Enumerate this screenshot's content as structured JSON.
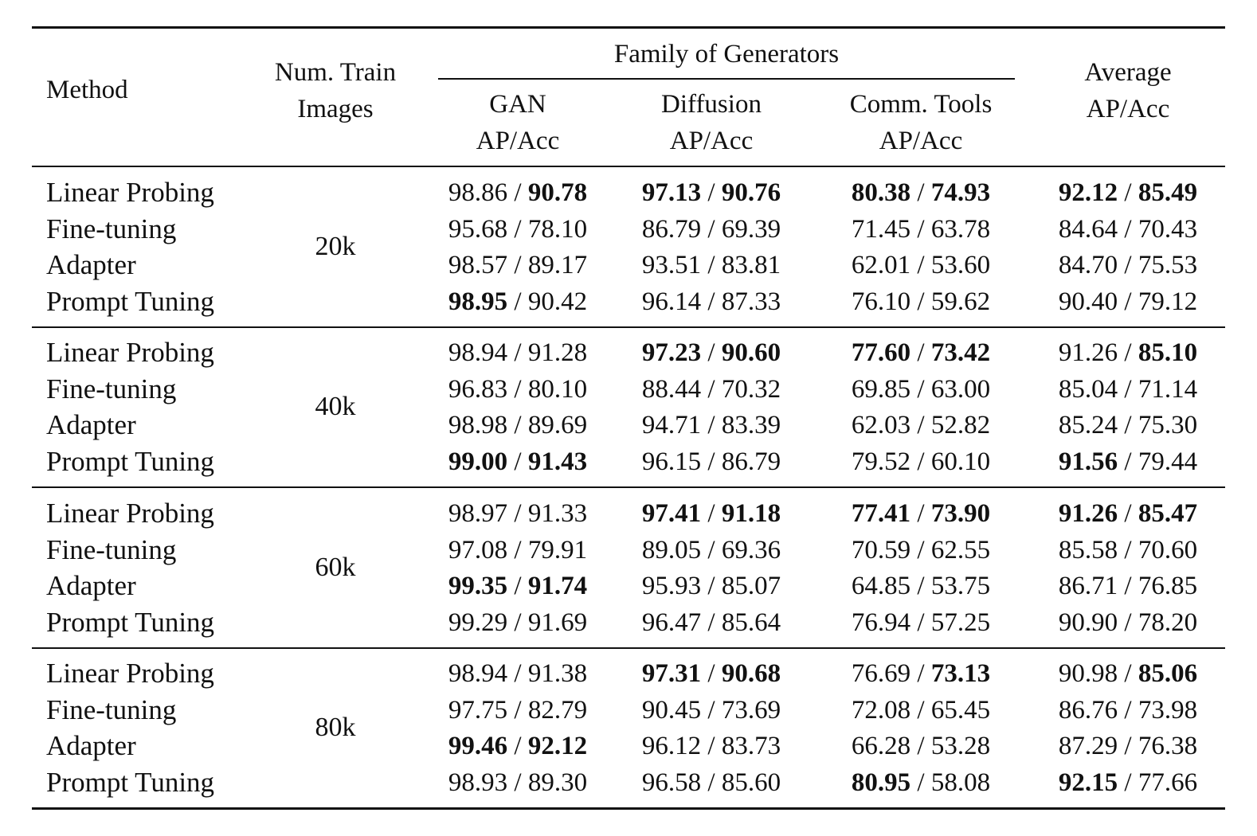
{
  "header": {
    "method": "Method",
    "num_train": [
      "Num. Train",
      "Images"
    ],
    "family": "Family of Generators",
    "columns": [
      [
        "GAN",
        "AP/Acc"
      ],
      [
        "Diffusion",
        "AP/Acc"
      ],
      [
        "Comm. Tools",
        "AP/Acc"
      ]
    ],
    "average": [
      "Average",
      "AP/Acc"
    ]
  },
  "separator": " / ",
  "groups": [
    {
      "size": "20k",
      "rows": [
        {
          "method": "Linear Probing",
          "cells": [
            {
              "ap": "98.86",
              "acc": "90.78",
              "ap_bold": false,
              "acc_bold": true
            },
            {
              "ap": "97.13",
              "acc": "90.76",
              "ap_bold": true,
              "acc_bold": true
            },
            {
              "ap": "80.38",
              "acc": "74.93",
              "ap_bold": true,
              "acc_bold": true
            },
            {
              "ap": "92.12",
              "acc": "85.49",
              "ap_bold": true,
              "acc_bold": true
            }
          ]
        },
        {
          "method": "Fine-tuning",
          "cells": [
            {
              "ap": "95.68",
              "acc": "78.10",
              "ap_bold": false,
              "acc_bold": false
            },
            {
              "ap": "86.79",
              "acc": "69.39",
              "ap_bold": false,
              "acc_bold": false
            },
            {
              "ap": "71.45",
              "acc": "63.78",
              "ap_bold": false,
              "acc_bold": false
            },
            {
              "ap": "84.64",
              "acc": "70.43",
              "ap_bold": false,
              "acc_bold": false
            }
          ]
        },
        {
          "method": "Adapter",
          "cells": [
            {
              "ap": "98.57",
              "acc": "89.17",
              "ap_bold": false,
              "acc_bold": false
            },
            {
              "ap": "93.51",
              "acc": "83.81",
              "ap_bold": false,
              "acc_bold": false
            },
            {
              "ap": "62.01",
              "acc": "53.60",
              "ap_bold": false,
              "acc_bold": false
            },
            {
              "ap": "84.70",
              "acc": "75.53",
              "ap_bold": false,
              "acc_bold": false
            }
          ]
        },
        {
          "method": "Prompt Tuning",
          "cells": [
            {
              "ap": "98.95",
              "acc": "90.42",
              "ap_bold": true,
              "acc_bold": false
            },
            {
              "ap": "96.14",
              "acc": "87.33",
              "ap_bold": false,
              "acc_bold": false
            },
            {
              "ap": "76.10",
              "acc": "59.62",
              "ap_bold": false,
              "acc_bold": false
            },
            {
              "ap": "90.40",
              "acc": "79.12",
              "ap_bold": false,
              "acc_bold": false
            }
          ]
        }
      ]
    },
    {
      "size": "40k",
      "rows": [
        {
          "method": "Linear Probing",
          "cells": [
            {
              "ap": "98.94",
              "acc": "91.28",
              "ap_bold": false,
              "acc_bold": false
            },
            {
              "ap": "97.23",
              "acc": "90.60",
              "ap_bold": true,
              "acc_bold": true
            },
            {
              "ap": "77.60",
              "acc": "73.42",
              "ap_bold": true,
              "acc_bold": true
            },
            {
              "ap": "91.26",
              "acc": "85.10",
              "ap_bold": false,
              "acc_bold": true
            }
          ]
        },
        {
          "method": "Fine-tuning",
          "cells": [
            {
              "ap": "96.83",
              "acc": "80.10",
              "ap_bold": false,
              "acc_bold": false
            },
            {
              "ap": "88.44",
              "acc": "70.32",
              "ap_bold": false,
              "acc_bold": false
            },
            {
              "ap": "69.85",
              "acc": "63.00",
              "ap_bold": false,
              "acc_bold": false
            },
            {
              "ap": "85.04",
              "acc": "71.14",
              "ap_bold": false,
              "acc_bold": false
            }
          ]
        },
        {
          "method": "Adapter",
          "cells": [
            {
              "ap": "98.98",
              "acc": "89.69",
              "ap_bold": false,
              "acc_bold": false
            },
            {
              "ap": "94.71",
              "acc": "83.39",
              "ap_bold": false,
              "acc_bold": false
            },
            {
              "ap": "62.03",
              "acc": "52.82",
              "ap_bold": false,
              "acc_bold": false
            },
            {
              "ap": "85.24",
              "acc": "75.30",
              "ap_bold": false,
              "acc_bold": false
            }
          ]
        },
        {
          "method": "Prompt Tuning",
          "cells": [
            {
              "ap": "99.00",
              "acc": "91.43",
              "ap_bold": true,
              "acc_bold": true
            },
            {
              "ap": "96.15",
              "acc": "86.79",
              "ap_bold": false,
              "acc_bold": false
            },
            {
              "ap": "79.52",
              "acc": "60.10",
              "ap_bold": false,
              "acc_bold": false
            },
            {
              "ap": "91.56",
              "acc": "79.44",
              "ap_bold": true,
              "acc_bold": false
            }
          ]
        }
      ]
    },
    {
      "size": "60k",
      "rows": [
        {
          "method": "Linear Probing",
          "cells": [
            {
              "ap": "98.97",
              "acc": "91.33",
              "ap_bold": false,
              "acc_bold": false
            },
            {
              "ap": "97.41",
              "acc": "91.18",
              "ap_bold": true,
              "acc_bold": true
            },
            {
              "ap": "77.41",
              "acc": "73.90",
              "ap_bold": true,
              "acc_bold": true
            },
            {
              "ap": "91.26",
              "acc": "85.47",
              "ap_bold": true,
              "acc_bold": true
            }
          ]
        },
        {
          "method": "Fine-tuning",
          "cells": [
            {
              "ap": "97.08",
              "acc": "79.91",
              "ap_bold": false,
              "acc_bold": false
            },
            {
              "ap": "89.05",
              "acc": "69.36",
              "ap_bold": false,
              "acc_bold": false
            },
            {
              "ap": "70.59",
              "acc": "62.55",
              "ap_bold": false,
              "acc_bold": false
            },
            {
              "ap": "85.58",
              "acc": "70.60",
              "ap_bold": false,
              "acc_bold": false
            }
          ]
        },
        {
          "method": "Adapter",
          "cells": [
            {
              "ap": "99.35",
              "acc": "91.74",
              "ap_bold": true,
              "acc_bold": true
            },
            {
              "ap": "95.93",
              "acc": "85.07",
              "ap_bold": false,
              "acc_bold": false
            },
            {
              "ap": "64.85",
              "acc": "53.75",
              "ap_bold": false,
              "acc_bold": false
            },
            {
              "ap": "86.71",
              "acc": "76.85",
              "ap_bold": false,
              "acc_bold": false
            }
          ]
        },
        {
          "method": "Prompt Tuning",
          "cells": [
            {
              "ap": "99.29",
              "acc": "91.69",
              "ap_bold": false,
              "acc_bold": false
            },
            {
              "ap": "96.47",
              "acc": "85.64",
              "ap_bold": false,
              "acc_bold": false
            },
            {
              "ap": "76.94",
              "acc": "57.25",
              "ap_bold": false,
              "acc_bold": false
            },
            {
              "ap": "90.90",
              "acc": "78.20",
              "ap_bold": false,
              "acc_bold": false
            }
          ]
        }
      ]
    },
    {
      "size": "80k",
      "rows": [
        {
          "method": "Linear Probing",
          "cells": [
            {
              "ap": "98.94",
              "acc": "91.38",
              "ap_bold": false,
              "acc_bold": false
            },
            {
              "ap": "97.31",
              "acc": "90.68",
              "ap_bold": true,
              "acc_bold": true
            },
            {
              "ap": "76.69",
              "acc": "73.13",
              "ap_bold": false,
              "acc_bold": true
            },
            {
              "ap": "90.98",
              "acc": "85.06",
              "ap_bold": false,
              "acc_bold": true
            }
          ]
        },
        {
          "method": "Fine-tuning",
          "cells": [
            {
              "ap": "97.75",
              "acc": "82.79",
              "ap_bold": false,
              "acc_bold": false
            },
            {
              "ap": "90.45",
              "acc": "73.69",
              "ap_bold": false,
              "acc_bold": false
            },
            {
              "ap": "72.08",
              "acc": "65.45",
              "ap_bold": false,
              "acc_bold": false
            },
            {
              "ap": "86.76",
              "acc": "73.98",
              "ap_bold": false,
              "acc_bold": false
            }
          ]
        },
        {
          "method": "Adapter",
          "cells": [
            {
              "ap": "99.46",
              "acc": "92.12",
              "ap_bold": true,
              "acc_bold": true
            },
            {
              "ap": "96.12",
              "acc": "83.73",
              "ap_bold": false,
              "acc_bold": false
            },
            {
              "ap": "66.28",
              "acc": "53.28",
              "ap_bold": false,
              "acc_bold": false
            },
            {
              "ap": "87.29",
              "acc": "76.38",
              "ap_bold": false,
              "acc_bold": false
            }
          ]
        },
        {
          "method": "Prompt Tuning",
          "cells": [
            {
              "ap": "98.93",
              "acc": "89.30",
              "ap_bold": false,
              "acc_bold": false
            },
            {
              "ap": "96.58",
              "acc": "85.60",
              "ap_bold": false,
              "acc_bold": false
            },
            {
              "ap": "80.95",
              "acc": "58.08",
              "ap_bold": true,
              "acc_bold": false
            },
            {
              "ap": "92.15",
              "acc": "77.66",
              "ap_bold": true,
              "acc_bold": false
            }
          ]
        }
      ]
    }
  ]
}
